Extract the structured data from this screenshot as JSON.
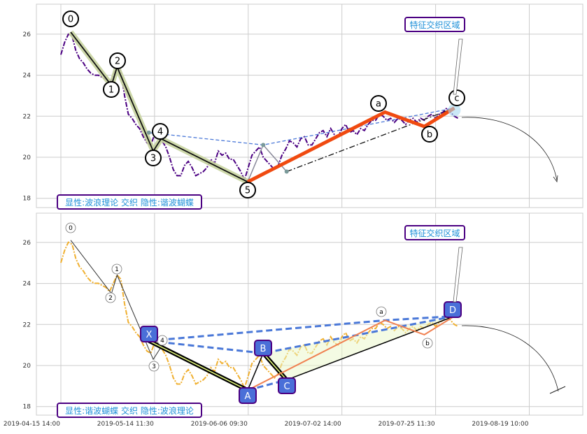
{
  "chart_data": [
    {
      "type": "line",
      "panel": "top",
      "ylim": [
        17.6,
        27.4
      ],
      "yticks": [
        18,
        20,
        22,
        24,
        26
      ],
      "xlim": [
        -26,
        557
      ],
      "grid": true,
      "price": {
        "t_start": 0,
        "t_step": 4,
        "color": "#4b0082",
        "values": [
          25.0,
          25.6,
          26.0,
          25.9,
          25.2,
          24.8,
          24.6,
          24.3,
          24.1,
          24.0,
          24.0,
          23.9,
          23.8,
          23.6,
          24.0,
          24.4,
          24.2,
          23.0,
          22.1,
          21.9,
          21.6,
          21.4,
          21.0,
          20.7,
          20.6,
          21.1,
          20.9,
          20.8,
          20.5,
          20.0,
          19.4,
          19.1,
          19.1,
          19.6,
          19.8,
          19.5,
          19.1,
          19.2,
          19.3,
          19.5,
          19.9,
          19.7,
          20.3,
          20.1,
          20.2,
          19.9,
          19.9,
          19.6,
          19.3,
          18.9,
          19.5,
          20.1,
          20.3,
          20.5,
          20.0,
          19.8,
          19.6,
          19.4,
          19.6,
          20.1,
          20.4,
          20.8,
          20.7,
          20.5,
          20.9,
          21.0,
          20.6,
          20.6,
          20.9,
          21.2,
          21.3,
          21.0,
          21.4,
          21.1,
          21.0,
          21.4,
          21.6,
          21.2,
          21.3,
          21.1,
          21.4,
          21.3,
          21.6,
          21.8,
          21.8,
          22.1,
          22.0,
          21.8,
          21.9,
          21.7,
          21.9,
          21.8,
          21.6,
          21.8,
          21.9,
          21.7,
          21.9,
          21.8,
          22.0,
          22.1,
          21.9,
          22.1,
          22.2,
          22.4,
          22.2,
          22.0,
          21.9
        ]
      },
      "waves": [
        {
          "label": "0",
          "t": 10.5,
          "v": 26.1
        },
        {
          "label": "1",
          "t": 54,
          "v": 23.5
        },
        {
          "label": "2",
          "t": 60,
          "v": 24.4
        },
        {
          "label": "3",
          "t": 98.6,
          "v": 20.3
        },
        {
          "label": "4",
          "t": 107,
          "v": 20.9
        },
        {
          "label": "5",
          "t": 199.4,
          "v": 18.8
        }
      ],
      "abc": [
        {
          "label": "a",
          "t": 346,
          "v": 22.2
        },
        {
          "label": "b",
          "t": 388,
          "v": 21.5
        },
        {
          "label": "c",
          "t": 420,
          "v": 22.4
        }
      ],
      "harmonic": [
        {
          "label": "X",
          "t": 94,
          "v": 21.2
        },
        {
          "label": "A",
          "t": 199.4,
          "v": 18.8
        },
        {
          "label": "B",
          "t": 216,
          "v": 20.6
        },
        {
          "label": "C",
          "t": 241,
          "v": 19.3
        },
        {
          "label": "D",
          "t": 420,
          "v": 22.4
        }
      ],
      "annotations": {
        "zone": "特征交织区域",
        "legend": "显性:波浪理论 交织 隐性:谐波蝴蝶"
      }
    },
    {
      "type": "line",
      "panel": "bottom",
      "ylim": [
        17.6,
        27.4
      ],
      "yticks": [
        18,
        20,
        22,
        24,
        26
      ],
      "xlim": [
        -26,
        557
      ],
      "grid": true,
      "price_color": "#f0b030",
      "annotations": {
        "zone": "特征交织区域",
        "legend": "显性:谐波蝴蝶 交织 隐性:波浪理论"
      },
      "xticks": [
        {
          "t": 0,
          "label": "2019-04-15 14:00"
        },
        {
          "t": 100,
          "label": "2019-05-14 11:30"
        },
        {
          "t": 200,
          "label": "2019-06-06 09:30"
        },
        {
          "t": 300,
          "label": "2019-07-02 14:00"
        },
        {
          "t": 400,
          "label": "2019-07-25 11:30"
        },
        {
          "t": 500,
          "label": "2019-08-19 10:00"
        }
      ]
    }
  ],
  "colors": {
    "wave_highlight": "#c8d4a0",
    "impulse_orange": "#f04a10",
    "dash_blue": "#4a78d8",
    "harm_fill": "#4a6fd8",
    "harm_border": "#4b0082",
    "label_text": "#1e90d8"
  }
}
